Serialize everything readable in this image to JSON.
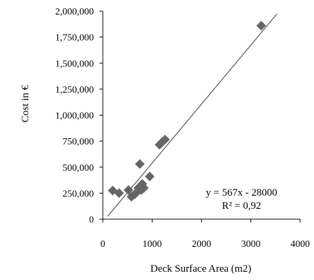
{
  "chart_data": {
    "type": "scatter",
    "title": "",
    "xlabel": "Deck Surface Area (m2)",
    "ylabel": "Cost in €",
    "xlim": [
      0,
      4000
    ],
    "ylim": [
      0,
      2000000
    ],
    "x_ticks": [
      0,
      1000,
      2000,
      3000,
      4000
    ],
    "x_tick_labels": [
      "0",
      "1000",
      "2000",
      "3000",
      "4000"
    ],
    "y_ticks": [
      0,
      250000,
      500000,
      750000,
      1000000,
      1250000,
      1500000,
      1750000,
      2000000
    ],
    "y_tick_labels": [
      "0",
      "250,000",
      "500,000",
      "750,000",
      "1,000,000",
      "1,250,000",
      "1,500,000",
      "1,750,000",
      "2,000,000"
    ],
    "grid": false,
    "legend": "none",
    "marker": "diamond",
    "marker_color": "#666666",
    "series": [
      {
        "points": [
          {
            "x": 200,
            "y": 275000
          },
          {
            "x": 330,
            "y": 250000
          },
          {
            "x": 520,
            "y": 280000
          },
          {
            "x": 580,
            "y": 215000
          },
          {
            "x": 650,
            "y": 240000
          },
          {
            "x": 700,
            "y": 265000
          },
          {
            "x": 720,
            "y": 300000
          },
          {
            "x": 750,
            "y": 530000
          },
          {
            "x": 780,
            "y": 280000
          },
          {
            "x": 800,
            "y": 340000
          },
          {
            "x": 830,
            "y": 300000
          },
          {
            "x": 950,
            "y": 410000
          },
          {
            "x": 1150,
            "y": 715000
          },
          {
            "x": 1200,
            "y": 740000
          },
          {
            "x": 1260,
            "y": 765000
          },
          {
            "x": 3210,
            "y": 1860000
          }
        ]
      }
    ],
    "trendline": {
      "slope": 567,
      "intercept": -28000,
      "x_range": [
        100,
        3530
      ],
      "color": "#555555"
    },
    "annotations": {
      "equation": "y = 567x - 28000",
      "r_squared": "R² = 0,92"
    }
  }
}
